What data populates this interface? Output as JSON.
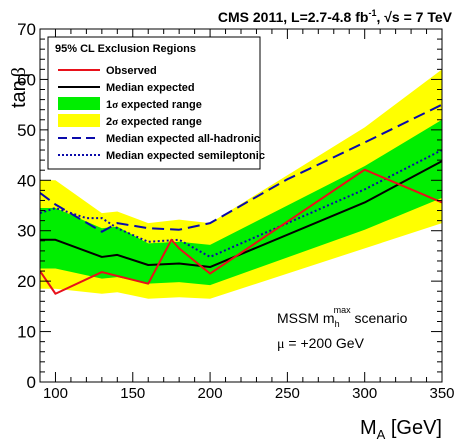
{
  "chart_data": {
    "type": "line",
    "title_main": "CMS 2011, L=2.7-4.8 fb",
    "title_sup": "-1",
    "title_tail": ", √s = 7 TeV",
    "xlabel_main": "M",
    "xlabel_sub": "A",
    "xlabel_unit": " [GeV]",
    "ylabel_main": "tan",
    "ylabel_greek": "β",
    "xlim": [
      90,
      350
    ],
    "ylim": [
      0,
      70
    ],
    "x_ticks": [
      100,
      150,
      200,
      250,
      300,
      350
    ],
    "y_ticks": [
      0,
      10,
      20,
      30,
      40,
      50,
      60,
      70
    ],
    "x_tick_labels": [
      "100",
      "150",
      "200",
      "250",
      "300",
      "350"
    ],
    "y_tick_labels": [
      "0",
      "10",
      "20",
      "30",
      "40",
      "50",
      "60",
      "70"
    ],
    "grid": false,
    "legend_placement": "top-left",
    "legend": {
      "header": "95% CL Exclusion Regions",
      "entries": [
        {
          "label": "Observed",
          "style": "red-solid"
        },
        {
          "label": "Median expected",
          "style": "black-solid"
        },
        {
          "label_prefix": "1",
          "label_greek": "σ",
          "label_suffix": " expected range",
          "style": "green-fill"
        },
        {
          "label_prefix": "2",
          "label_greek": "σ",
          "label_suffix": " expected range",
          "style": "yellow-fill"
        },
        {
          "label": "Median expected all-hadronic",
          "style": "blue-dashed"
        },
        {
          "label": "Median expected semileptonic",
          "style": "blue-dotted"
        }
      ]
    },
    "annotation": {
      "line1_main": "MSSM m",
      "line1_sub": "h",
      "line1_sup": "max",
      "line1_tail": " scenario",
      "line2_greek": "μ",
      "line2_tail": " = +200 GeV"
    },
    "colors": {
      "observed": "#e8111a",
      "median": "#000000",
      "band1": "#00ee00",
      "band2": "#ffff00",
      "hadronic": "#0a0aaa",
      "semileptonic": "#0a0aaa"
    },
    "x": [
      90,
      100,
      130,
      140,
      160,
      180,
      200,
      300,
      350
    ],
    "series": [
      {
        "name": "Observed",
        "x": [
          90,
          100,
          130,
          160,
          175,
          180,
          200,
          300,
          350
        ],
        "y": [
          22,
          17.5,
          21.8,
          19.5,
          28.2,
          26.5,
          21.5,
          42.1,
          35.6
        ]
      },
      {
        "name": "Median expected",
        "x": [
          90,
          100,
          130,
          140,
          160,
          180,
          200,
          300,
          350
        ],
        "y": [
          28.2,
          28.2,
          24.8,
          25.2,
          23.2,
          23.5,
          22.8,
          35.6,
          43.8
        ]
      },
      {
        "name": "Median expected all-hadronic",
        "x": [
          90,
          100,
          130,
          140,
          160,
          180,
          200,
          250,
          300,
          350
        ],
        "y": [
          37.5,
          35.2,
          29.8,
          31.5,
          30.5,
          30.2,
          31.5,
          40.2,
          47.5,
          55
        ]
      },
      {
        "name": "Median expected semileptonic",
        "x": [
          90,
          100,
          120,
          130,
          140,
          160,
          180,
          200,
          300,
          350
        ],
        "y": [
          33.5,
          34.5,
          32.5,
          32.5,
          30.5,
          27.8,
          28.2,
          24.8,
          38.2,
          46
        ]
      }
    ],
    "band_1sigma": {
      "x": [
        90,
        100,
        130,
        140,
        160,
        180,
        200,
        300,
        350
      ],
      "lo": [
        22.5,
        22.5,
        20.5,
        20.8,
        19.5,
        19.8,
        19.2,
        30.2,
        36.5
      ],
      "hi": [
        34.5,
        34.5,
        30.5,
        30.8,
        27.5,
        27.8,
        27.2,
        42.8,
        52
      ]
    },
    "band_2sigma": {
      "x": [
        90,
        100,
        130,
        140,
        160,
        180,
        200,
        300,
        350
      ],
      "lo": [
        18.5,
        18.5,
        17.5,
        17.8,
        16.5,
        16.8,
        16.5,
        26.5,
        31.5
      ],
      "hi": [
        40,
        40,
        33.5,
        33.8,
        31.5,
        32.2,
        31.5,
        50.5,
        62
      ]
    }
  }
}
